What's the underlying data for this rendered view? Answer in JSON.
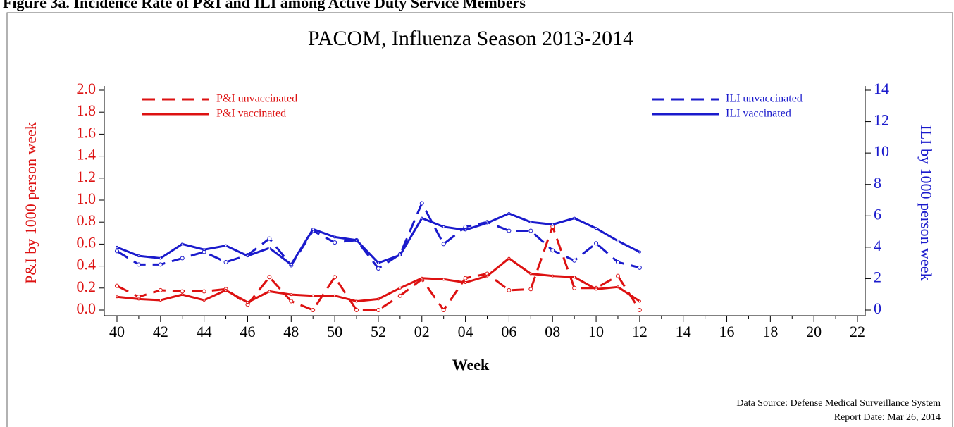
{
  "header": "Figure 3a. Incidence Rate of P&I and ILI among Active Duty Service Members",
  "chart_data": {
    "type": "line",
    "title": "PACOM, Influenza Season 2013-2014",
    "x_label": "Week",
    "y_label": "P&I by 1000 person week",
    "y2_label": "ILI by 1000 person week",
    "categories": [
      "40",
      null,
      "42",
      null,
      "44",
      null,
      "46",
      null,
      "48",
      null,
      "50",
      null,
      "52",
      null,
      "02",
      null,
      "04",
      null,
      "06",
      null,
      "08",
      null,
      "10",
      null,
      "12",
      null,
      "14",
      null,
      "16",
      null,
      "18",
      null,
      "20",
      null,
      "22"
    ],
    "ylim": [
      0,
      2.0
    ],
    "yticks": [
      {
        "value": 0,
        "label": "0.0"
      },
      {
        "value": 0.2,
        "label": "0.2"
      },
      {
        "value": 0.4,
        "label": "0.4"
      },
      {
        "value": 0.6,
        "label": "0.6"
      },
      {
        "value": 0.8,
        "label": "0.8"
      },
      {
        "value": 1,
        "label": "1.0"
      },
      {
        "value": 1.2,
        "label": "1.2"
      },
      {
        "value": 1.4,
        "label": "1.4"
      },
      {
        "value": 1.6,
        "label": "1.6"
      },
      {
        "value": 1.8,
        "label": "1.8"
      },
      {
        "value": 2,
        "label": "2.0"
      }
    ],
    "y2lim": [
      0,
      14
    ],
    "y2ticks": [
      0,
      2,
      4,
      6,
      8,
      10,
      12,
      14
    ],
    "y_color": "#dd1111",
    "y2_color": "#1a1acc",
    "series": [
      {
        "name": "P&I unvaccinated",
        "color": "#dd1111",
        "linestyle": "dashed",
        "axis": "y",
        "values": [
          0.22,
          0.12,
          0.18,
          0.17,
          0.17,
          0.19,
          0.05,
          0.3,
          0.08,
          0.0,
          0.3,
          0.0,
          0.0,
          0.13,
          0.28,
          0.0,
          0.29,
          0.33,
          0.18,
          0.19,
          0.76,
          0.2,
          0.2,
          0.31,
          0.0,
          null,
          null,
          null,
          null,
          null,
          null,
          null,
          null,
          null,
          null
        ]
      },
      {
        "name": "P&I vaccinated",
        "color": "#dd1111",
        "linestyle": "solid",
        "axis": "y",
        "values": [
          0.12,
          0.1,
          0.09,
          0.14,
          0.09,
          0.18,
          0.07,
          0.17,
          0.14,
          0.13,
          0.13,
          0.08,
          0.1,
          0.2,
          0.29,
          0.28,
          0.25,
          0.31,
          0.47,
          0.33,
          0.31,
          0.3,
          0.19,
          0.21,
          0.08,
          null,
          null,
          null,
          null,
          null,
          null,
          null,
          null,
          null,
          null
        ]
      },
      {
        "name": "ILI unvaccinated",
        "color": "#1a1acc",
        "linestyle": "dashed",
        "axis": "y2",
        "values": [
          3.75,
          2.9,
          2.9,
          3.3,
          3.7,
          3.05,
          3.5,
          4.55,
          2.85,
          5.05,
          4.3,
          4.45,
          2.65,
          3.55,
          6.8,
          4.2,
          5.3,
          5.6,
          5.05,
          5.05,
          3.8,
          3.15,
          4.25,
          3.05,
          2.7,
          null,
          null,
          null,
          null,
          null,
          null,
          null,
          null,
          null,
          null
        ]
      },
      {
        "name": "ILI vaccinated",
        "color": "#1a1acc",
        "linestyle": "solid",
        "axis": "y2",
        "values": [
          4.0,
          3.45,
          3.3,
          4.2,
          3.85,
          4.1,
          3.45,
          3.95,
          2.9,
          5.15,
          4.65,
          4.45,
          3.0,
          3.5,
          5.85,
          5.3,
          5.1,
          5.55,
          6.15,
          5.6,
          5.45,
          5.85,
          5.2,
          4.4,
          3.7,
          null,
          null,
          null,
          null,
          null,
          null,
          null,
          null,
          null,
          null
        ]
      }
    ],
    "notes": [
      "Data Source: Defense Medical Surveillance System",
      "Report Date: Mar 26, 2014"
    ]
  }
}
